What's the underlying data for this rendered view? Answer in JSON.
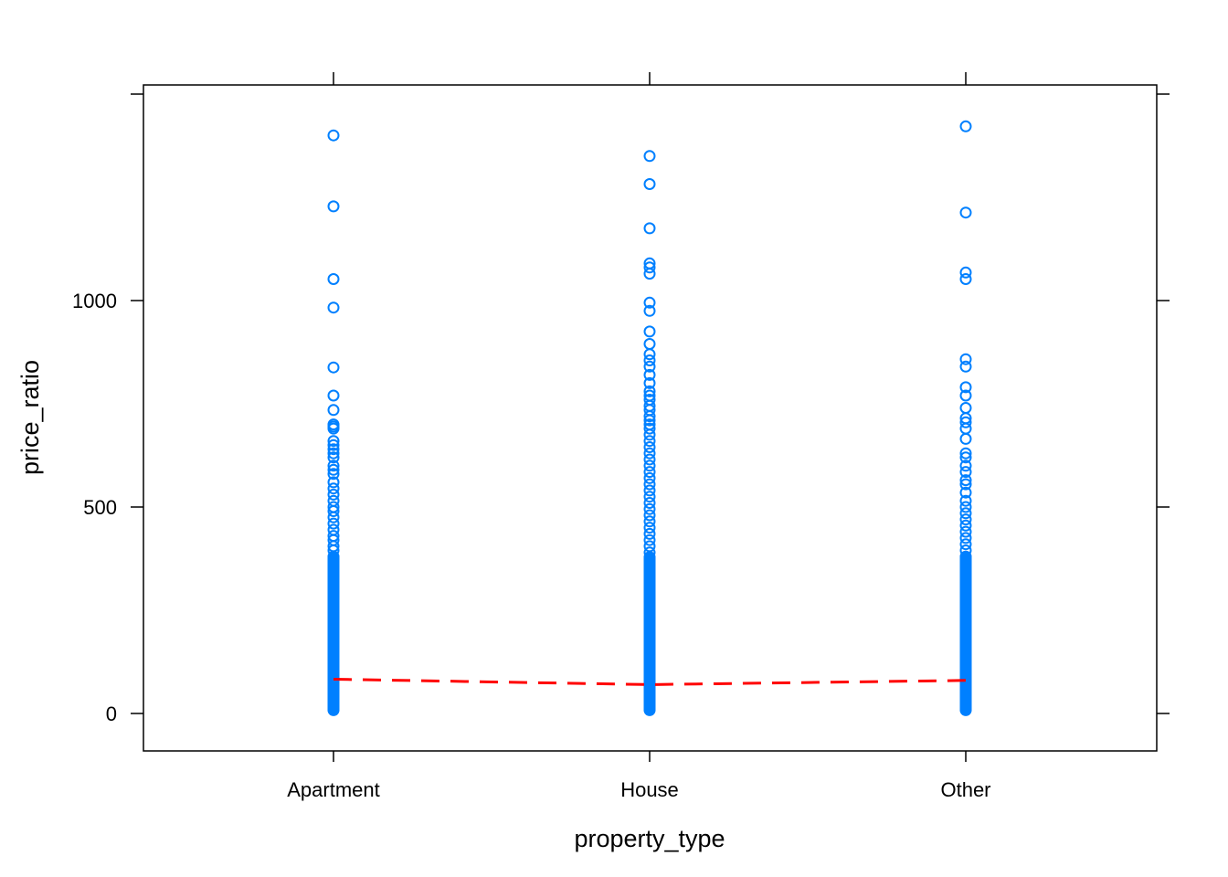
{
  "chart_data": {
    "type": "scatter",
    "title": "",
    "xlabel": "property_type",
    "ylabel": "price_ratio",
    "categories": [
      "Apartment",
      "House",
      "Other"
    ],
    "ylim": [
      -90,
      1530
    ],
    "yticks": [
      0,
      500,
      1000
    ],
    "grid": false,
    "colors": {
      "points": "#0080ff",
      "trend": "#ff0000"
    },
    "series": [
      {
        "category": "Apartment",
        "values": [
          1400,
          1228,
          1052,
          983,
          838,
          770,
          735,
          700,
          695,
          690,
          660,
          650,
          640,
          630,
          620,
          600,
          590,
          580,
          560,
          545,
          530,
          515,
          500,
          490,
          475,
          460,
          445,
          430,
          420,
          405,
          395,
          380,
          365,
          350,
          335,
          320,
          305,
          290,
          275,
          260,
          245,
          230,
          215,
          200,
          185,
          170,
          155,
          140,
          125,
          110,
          95,
          80,
          65,
          50,
          40,
          30,
          20,
          12,
          8
        ]
      },
      {
        "category": "House",
        "values": [
          1350,
          1282,
          1175,
          1090,
          1080,
          1065,
          995,
          975,
          925,
          895,
          870,
          855,
          840,
          820,
          800,
          780,
          770,
          760,
          745,
          735,
          720,
          710,
          700,
          690,
          675,
          660,
          645,
          630,
          615,
          600,
          585,
          570,
          555,
          540,
          525,
          510,
          495,
          480,
          465,
          450,
          435,
          420,
          405,
          390,
          375,
          360,
          345,
          330,
          315,
          300,
          285,
          270,
          255,
          240,
          225,
          210,
          195,
          180,
          165,
          150,
          135,
          120,
          105,
          90,
          75,
          60,
          45,
          30,
          20,
          12,
          8
        ]
      },
      {
        "category": "Other",
        "values": [
          1422,
          1213,
          1068,
          1052,
          858,
          840,
          790,
          770,
          740,
          715,
          705,
          690,
          665,
          630,
          620,
          600,
          585,
          565,
          555,
          535,
          515,
          500,
          485,
          470,
          455,
          440,
          425,
          410,
          395,
          380,
          365,
          350,
          335,
          320,
          305,
          290,
          275,
          260,
          245,
          230,
          215,
          200,
          185,
          170,
          155,
          140,
          125,
          110,
          95,
          80,
          65,
          50,
          40,
          30,
          20,
          12,
          8
        ]
      }
    ],
    "trend": {
      "style": "dashed",
      "values": [
        83,
        70,
        80
      ]
    }
  }
}
